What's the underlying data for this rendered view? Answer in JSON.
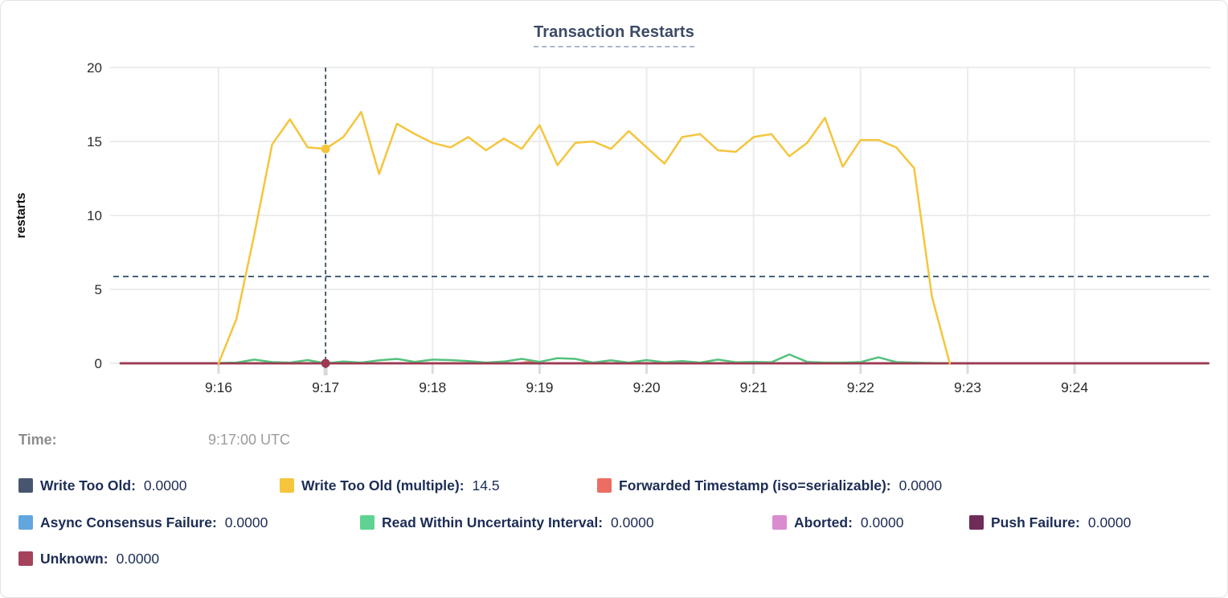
{
  "card_title": "Transaction Restarts",
  "tooltip": {
    "time_label": "Time:",
    "time_value": "9:17:00 UTC"
  },
  "legend": {
    "rows": [
      [
        {
          "label": "Write Too Old:",
          "value": "0.0000",
          "color": "#47566f"
        },
        {
          "label": "Write Too Old (multiple):",
          "value": "14.5",
          "color": "#f5c53c"
        },
        {
          "label": "Forwarded Timestamp (iso=serializable):",
          "value": "0.0000",
          "color": "#ec6e62"
        }
      ],
      [
        {
          "label": "Async Consensus Failure:",
          "value": "0.0000",
          "color": "#62a6de"
        },
        {
          "label": "Read Within Uncertainty Interval:",
          "value": "0.0000",
          "color": "#5ed391"
        },
        {
          "label": "Aborted:",
          "value": "0.0000",
          "color": "#da8cd0"
        },
        {
          "label": "Push Failure:",
          "value": "0.0000",
          "color": "#6f2c59"
        }
      ],
      [
        {
          "label": "Unknown:",
          "value": "0.0000",
          "color": "#a5425c"
        }
      ]
    ]
  },
  "chart_data": {
    "type": "line",
    "title": "Transaction Restarts",
    "xlabel": "",
    "ylabel": "restarts",
    "ylim": [
      0,
      20
    ],
    "y_ticks": [
      0,
      5,
      10,
      15,
      20
    ],
    "x_ticks": [
      "9:16",
      "9:17",
      "9:18",
      "9:19",
      "9:20",
      "9:21",
      "9:22",
      "9:23",
      "9:24"
    ],
    "x_range": [
      "9:15:05",
      "9:25:15"
    ],
    "grid": true,
    "legend_position": "bottom",
    "average_line_value": 5.87,
    "average_line_color": "#44627e",
    "crosshair": {
      "time": "9:17:00",
      "color": "#2f4b63"
    },
    "hover_points": [
      {
        "series": "Write Too Old (multiple)",
        "time": "9:17:00",
        "value": 14.5,
        "color": "#f5c53c"
      },
      {
        "series": "Unknown",
        "time": "9:17:00",
        "value": 0,
        "color": "#9b3a52"
      }
    ],
    "series": [
      {
        "name": "Write Too Old",
        "color": "#47566f",
        "points": [
          [
            "9:15:05",
            0
          ],
          [
            "9:25:15",
            0
          ]
        ]
      },
      {
        "name": "Async Consensus Failure",
        "color": "#62a6de",
        "points": [
          [
            "9:15:05",
            0
          ],
          [
            "9:25:15",
            0
          ]
        ]
      },
      {
        "name": "Aborted",
        "color": "#da8cd0",
        "points": [
          [
            "9:15:05",
            0
          ],
          [
            "9:25:15",
            0
          ]
        ]
      },
      {
        "name": "Push Failure",
        "color": "#6f2c59",
        "points": [
          [
            "9:15:05",
            0
          ],
          [
            "9:25:15",
            0
          ]
        ]
      },
      {
        "name": "Forwarded Timestamp (iso=serializable)",
        "color": "#ec6e62",
        "points": [
          [
            "9:15:05",
            0
          ],
          [
            "9:18:48",
            0
          ],
          [
            "9:18:56",
            0.12
          ],
          [
            "9:19:04",
            0
          ],
          [
            "9:25:15",
            0
          ]
        ]
      },
      {
        "name": "Read Within Uncertainty Interval",
        "color": "#54c17d",
        "points": [
          [
            "9:16:00",
            0.02
          ],
          [
            "9:16:10",
            0.05
          ],
          [
            "9:16:20",
            0.25
          ],
          [
            "9:16:30",
            0.08
          ],
          [
            "9:16:40",
            0.05
          ],
          [
            "9:16:50",
            0.22
          ],
          [
            "9:17:00",
            0.0
          ],
          [
            "9:17:10",
            0.12
          ],
          [
            "9:17:20",
            0.05
          ],
          [
            "9:17:30",
            0.2
          ],
          [
            "9:17:40",
            0.3
          ],
          [
            "9:17:50",
            0.1
          ],
          [
            "9:18:00",
            0.25
          ],
          [
            "9:18:10",
            0.22
          ],
          [
            "9:18:20",
            0.15
          ],
          [
            "9:18:30",
            0.05
          ],
          [
            "9:18:40",
            0.12
          ],
          [
            "9:18:50",
            0.3
          ],
          [
            "9:19:00",
            0.1
          ],
          [
            "9:19:10",
            0.35
          ],
          [
            "9:19:20",
            0.3
          ],
          [
            "9:19:30",
            0.05
          ],
          [
            "9:19:40",
            0.2
          ],
          [
            "9:19:50",
            0.05
          ],
          [
            "9:20:00",
            0.22
          ],
          [
            "9:20:10",
            0.07
          ],
          [
            "9:20:20",
            0.15
          ],
          [
            "9:20:30",
            0.05
          ],
          [
            "9:20:40",
            0.25
          ],
          [
            "9:20:50",
            0.07
          ],
          [
            "9:21:00",
            0.1
          ],
          [
            "9:21:10",
            0.07
          ],
          [
            "9:21:20",
            0.6
          ],
          [
            "9:21:30",
            0.1
          ],
          [
            "9:21:40",
            0.05
          ],
          [
            "9:21:50",
            0.05
          ],
          [
            "9:22:00",
            0.08
          ],
          [
            "9:22:10",
            0.4
          ],
          [
            "9:22:20",
            0.08
          ],
          [
            "9:22:30",
            0.05
          ],
          [
            "9:22:40",
            0.02
          ],
          [
            "9:22:50",
            0.0
          ]
        ]
      },
      {
        "name": "Unknown",
        "color": "#9b3a52",
        "points": [
          [
            "9:15:05",
            0
          ],
          [
            "9:25:15",
            0
          ]
        ]
      },
      {
        "name": "Write Too Old (multiple)",
        "color": "#f5c53c",
        "points": [
          [
            "9:16:00",
            0
          ],
          [
            "9:16:10",
            3.0
          ],
          [
            "9:16:20",
            8.7
          ],
          [
            "9:16:30",
            14.8
          ],
          [
            "9:16:40",
            16.5
          ],
          [
            "9:16:50",
            14.6
          ],
          [
            "9:17:00",
            14.5
          ],
          [
            "9:17:10",
            15.3
          ],
          [
            "9:17:20",
            17.0
          ],
          [
            "9:17:30",
            12.8
          ],
          [
            "9:17:40",
            16.2
          ],
          [
            "9:17:50",
            15.5
          ],
          [
            "9:18:00",
            14.9
          ],
          [
            "9:18:10",
            14.6
          ],
          [
            "9:18:20",
            15.3
          ],
          [
            "9:18:30",
            14.4
          ],
          [
            "9:18:40",
            15.2
          ],
          [
            "9:18:50",
            14.5
          ],
          [
            "9:19:00",
            16.1
          ],
          [
            "9:19:10",
            13.4
          ],
          [
            "9:19:20",
            14.9
          ],
          [
            "9:19:30",
            15.0
          ],
          [
            "9:19:40",
            14.5
          ],
          [
            "9:19:50",
            15.7
          ],
          [
            "9:20:00",
            14.6
          ],
          [
            "9:20:10",
            13.5
          ],
          [
            "9:20:20",
            15.3
          ],
          [
            "9:20:30",
            15.5
          ],
          [
            "9:20:40",
            14.4
          ],
          [
            "9:20:50",
            14.3
          ],
          [
            "9:21:00",
            15.3
          ],
          [
            "9:21:10",
            15.5
          ],
          [
            "9:21:20",
            14.0
          ],
          [
            "9:21:30",
            14.9
          ],
          [
            "9:21:40",
            16.6
          ],
          [
            "9:21:50",
            13.3
          ],
          [
            "9:22:00",
            15.1
          ],
          [
            "9:22:10",
            15.1
          ],
          [
            "9:22:20",
            14.6
          ],
          [
            "9:22:30",
            13.2
          ],
          [
            "9:22:40",
            4.5
          ],
          [
            "9:22:50",
            0
          ]
        ]
      }
    ]
  }
}
